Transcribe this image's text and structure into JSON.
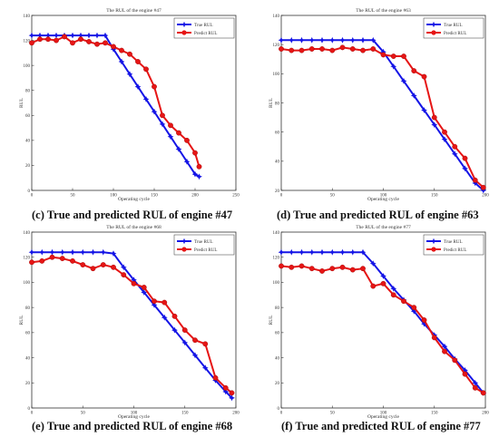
{
  "colors": {
    "true_line": "#1515e6",
    "pred_line": "#e61515",
    "axis": "#333333",
    "background": "#ffffff"
  },
  "chart_data": [
    {
      "type": "line",
      "caption": "(c) True and predicted RUL of engine #47",
      "title": "The RUL of the engine #47",
      "xlabel": "Operating cycle",
      "ylabel": "RUL",
      "xlim": [
        0,
        250
      ],
      "ylim": [
        0,
        140
      ],
      "xticks": [
        0,
        50,
        100,
        150,
        200,
        250
      ],
      "yticks": [
        0,
        20,
        40,
        60,
        80,
        100,
        120,
        140
      ],
      "legend": "top-right",
      "grid": false,
      "series": [
        {
          "name": "True RUL",
          "marker": "star",
          "color": "#1515e6",
          "x": [
            0,
            10,
            20,
            30,
            40,
            50,
            60,
            70,
            80,
            90,
            100,
            110,
            120,
            130,
            140,
            150,
            160,
            170,
            180,
            190,
            200,
            205
          ],
          "y": [
            124,
            124,
            124,
            124,
            124,
            124,
            124,
            124,
            124,
            124,
            113,
            103,
            93,
            83,
            73,
            63,
            53,
            43,
            33,
            23,
            13,
            11
          ]
        },
        {
          "name": "Predict RUL",
          "marker": "circle",
          "color": "#e61515",
          "x": [
            0,
            10,
            20,
            30,
            40,
            50,
            60,
            70,
            80,
            90,
            100,
            110,
            120,
            130,
            140,
            150,
            160,
            170,
            180,
            190,
            200,
            205
          ],
          "y": [
            118,
            121,
            121,
            120,
            123,
            118,
            121,
            119,
            117,
            118,
            115,
            112,
            109,
            103,
            97,
            83,
            60,
            52,
            46,
            40,
            30,
            19
          ]
        }
      ]
    },
    {
      "type": "line",
      "caption": "(d) True and predicted RUL of engine #63",
      "title": "The RUL of the engine #63",
      "xlabel": "Operating cycle",
      "ylabel": "RUL",
      "xlim": [
        0,
        200
      ],
      "ylim": [
        20,
        140
      ],
      "xticks": [
        0,
        50,
        100,
        150,
        200
      ],
      "yticks": [
        20,
        40,
        60,
        80,
        100,
        120,
        140
      ],
      "legend": "top-right",
      "grid": false,
      "series": [
        {
          "name": "True RUL",
          "marker": "star",
          "color": "#1515e6",
          "x": [
            0,
            10,
            20,
            30,
            40,
            50,
            60,
            70,
            80,
            90,
            100,
            110,
            120,
            130,
            140,
            150,
            160,
            170,
            180,
            190,
            198
          ],
          "y": [
            123,
            123,
            123,
            123,
            123,
            123,
            123,
            123,
            123,
            123,
            115,
            105,
            95,
            85,
            75,
            65,
            55,
            45,
            35,
            25,
            20
          ]
        },
        {
          "name": "Predict RUL",
          "marker": "circle",
          "color": "#e61515",
          "x": [
            0,
            10,
            20,
            30,
            40,
            50,
            60,
            70,
            80,
            90,
            100,
            110,
            120,
            130,
            140,
            150,
            160,
            170,
            180,
            190,
            198
          ],
          "y": [
            117,
            116,
            116,
            117,
            117,
            116,
            118,
            117,
            116,
            117,
            113,
            112,
            112,
            102,
            98,
            70,
            60,
            50,
            42,
            27,
            22
          ]
        }
      ]
    },
    {
      "type": "line",
      "caption": "(e) True and predicted RUL of engine #68",
      "title": "The RUL of the engine #68",
      "xlabel": "Operating cycle",
      "ylabel": "RUL",
      "xlim": [
        0,
        200
      ],
      "ylim": [
        0,
        140
      ],
      "xticks": [
        0,
        50,
        100,
        150,
        200
      ],
      "yticks": [
        0,
        20,
        40,
        60,
        80,
        100,
        120,
        140
      ],
      "legend": "top-right",
      "grid": false,
      "series": [
        {
          "name": "True RUL",
          "marker": "star",
          "color": "#1515e6",
          "x": [
            0,
            10,
            20,
            30,
            40,
            50,
            60,
            70,
            80,
            90,
            100,
            110,
            120,
            130,
            140,
            150,
            160,
            170,
            180,
            190,
            196
          ],
          "y": [
            124,
            124,
            124,
            124,
            124,
            124,
            124,
            124,
            123,
            112,
            102,
            92,
            82,
            72,
            62,
            52,
            42,
            32,
            22,
            13,
            8
          ]
        },
        {
          "name": "Predict RUL",
          "marker": "circle",
          "color": "#e61515",
          "x": [
            0,
            10,
            20,
            30,
            40,
            50,
            60,
            70,
            80,
            90,
            100,
            110,
            120,
            130,
            140,
            150,
            160,
            170,
            180,
            190,
            196
          ],
          "y": [
            116,
            117,
            120,
            119,
            117,
            114,
            111,
            114,
            112,
            106,
            99,
            96,
            85,
            84,
            73,
            62,
            54,
            51,
            24,
            16,
            12
          ]
        }
      ]
    },
    {
      "type": "line",
      "caption": "(f) True and predicted RUL of engine #77",
      "title": "The RUL of the engine #77",
      "xlabel": "Operating cycle",
      "ylabel": "RUL",
      "xlim": [
        0,
        200
      ],
      "ylim": [
        0,
        140
      ],
      "xticks": [
        0,
        50,
        100,
        150,
        200
      ],
      "yticks": [
        0,
        20,
        40,
        60,
        80,
        100,
        120,
        140
      ],
      "legend": "top-right",
      "grid": false,
      "series": [
        {
          "name": "True RUL",
          "marker": "star",
          "color": "#1515e6",
          "x": [
            0,
            10,
            20,
            30,
            40,
            50,
            60,
            70,
            80,
            90,
            100,
            110,
            120,
            130,
            140,
            150,
            160,
            170,
            180,
            190,
            198
          ],
          "y": [
            124,
            124,
            124,
            124,
            124,
            124,
            124,
            124,
            124,
            115,
            105,
            95,
            86,
            77,
            67,
            58,
            49,
            39,
            30,
            20,
            12
          ]
        },
        {
          "name": "Predict RUL",
          "marker": "circle",
          "color": "#e61515",
          "x": [
            0,
            10,
            20,
            30,
            40,
            50,
            60,
            70,
            80,
            90,
            100,
            110,
            120,
            130,
            140,
            150,
            160,
            170,
            180,
            190,
            198
          ],
          "y": [
            113,
            112,
            113,
            111,
            109,
            111,
            112,
            110,
            111,
            97,
            99,
            90,
            85,
            80,
            70,
            56,
            45,
            38,
            27,
            16,
            12
          ]
        }
      ]
    }
  ]
}
